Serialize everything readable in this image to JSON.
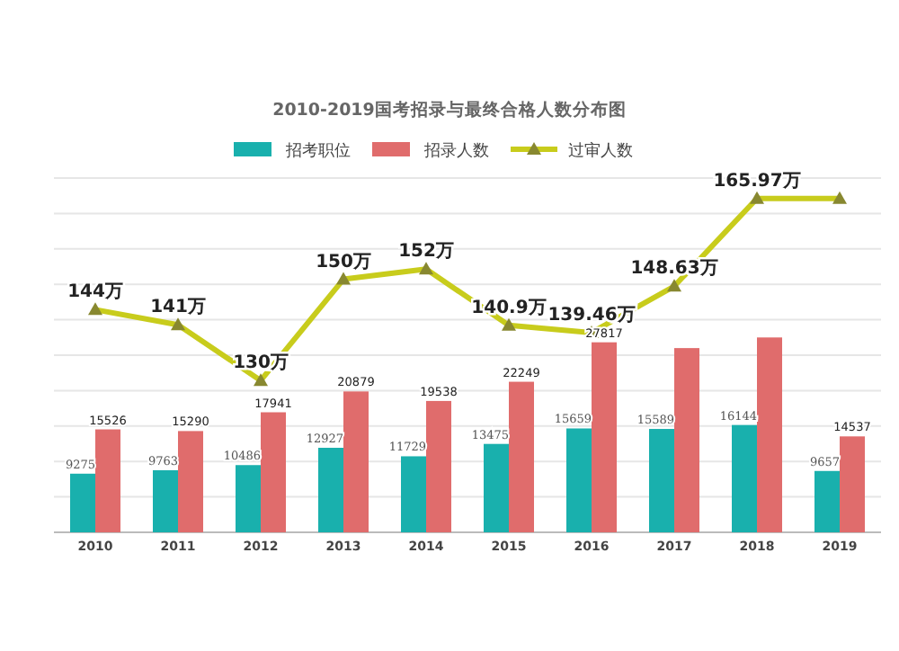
{
  "chart_data": {
    "type": "bar",
    "title": "2010-2019国考招录与最终合格人数分布图",
    "categories": [
      "2010",
      "2011",
      "2012",
      "2013",
      "2014",
      "2015",
      "2016",
      "2017",
      "2018",
      "2019"
    ],
    "series": [
      {
        "name": "招考职位",
        "color": "#19b0ad",
        "values": [
          9275,
          9763,
          10486,
          12927,
          11729,
          13475,
          15659,
          15589,
          16144,
          9657
        ],
        "value_labels": [
          "9275",
          "9763",
          "10486",
          "12927",
          "11729",
          "13475",
          "15659",
          "15589",
          "16144",
          "9657"
        ]
      },
      {
        "name": "招录人数",
        "color": "#e06c6c",
        "values": [
          15526,
          15290,
          17941,
          20879,
          19538,
          22249,
          27817,
          27000,
          28500,
          14537
        ],
        "value_labels": [
          "15526",
          "15290",
          "17941",
          "20879",
          "19538",
          "22249",
          "27817",
          null,
          null,
          "14537"
        ]
      },
      {
        "name": "过审人数",
        "type": "line",
        "axis": "y2",
        "color": "#c8cc1c",
        "marker": "triangle",
        "values": [
          144,
          141,
          130,
          150,
          152,
          140.9,
          139.46,
          148.63,
          165.97,
          165.97
        ],
        "value_labels": [
          "144万",
          "141万",
          "130万",
          "150万",
          "152万",
          "140.9万",
          "139.46万",
          "148.63万",
          "165.97万",
          null
        ]
      }
    ],
    "ylim": [
      1000,
      51000
    ],
    "yticks": [
      1000,
      6000,
      11000,
      16000,
      21000,
      26000,
      31000,
      36000,
      41000,
      46000,
      {
        "value": 51000,
        "label": null
      }
    ],
    "y2lim": [
      100,
      170
    ],
    "tick_labels": "x",
    "grid": "y",
    "legend": "top"
  }
}
